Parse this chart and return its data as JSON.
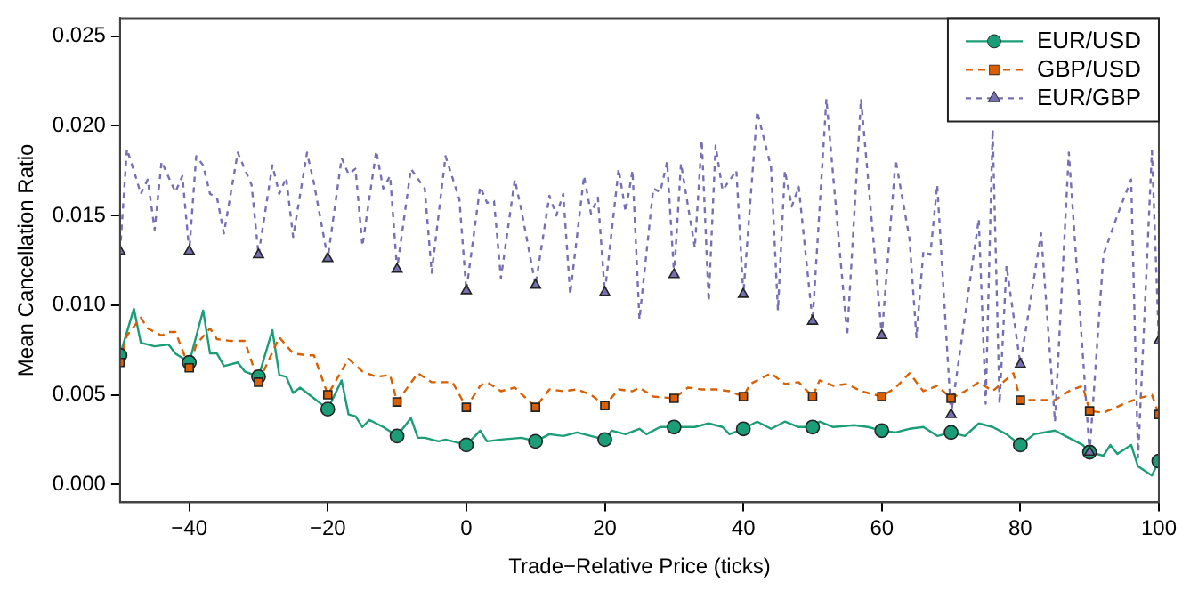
{
  "chart_data": {
    "type": "line",
    "xlabel": "Trade−Relative Price (ticks)",
    "ylabel": "Mean Cancellation Ratio",
    "xlim": [
      -50,
      100
    ],
    "ylim": [
      -0.001,
      0.026
    ],
    "xticks": [
      {
        "value": -40,
        "label": "−40"
      },
      {
        "value": -20,
        "label": "−20"
      },
      0,
      20,
      40,
      60,
      80,
      100
    ],
    "yticks": [
      {
        "value": 0,
        "label": "0.000"
      },
      {
        "value": 0.005,
        "label": "0.005"
      },
      {
        "value": 0.01,
        "label": "0.010"
      },
      {
        "value": 0.015,
        "label": "0.015"
      },
      {
        "value": 0.02,
        "label": "0.020"
      },
      {
        "value": 0.025,
        "label": "0.025"
      }
    ],
    "grid": false,
    "legend": "top right",
    "series": [
      {
        "name": "EUR/USD",
        "color": "#1b9e77",
        "line_style": "solid",
        "x": [
          -50,
          -48,
          -47,
          -45,
          -43,
          -42,
          -40,
          -38,
          -37,
          -36,
          -35,
          -33,
          -32,
          -30,
          -28,
          -27,
          -26,
          -25,
          -24,
          -22,
          -20,
          -18,
          -17,
          -16,
          -15,
          -14,
          -12,
          -10,
          -8,
          -7,
          -6,
          -4,
          -3,
          0,
          2,
          3,
          5,
          8,
          10,
          12,
          14,
          16,
          18,
          20,
          21,
          23,
          25,
          26,
          28,
          30,
          33,
          35,
          37,
          38,
          40,
          42,
          44,
          46,
          48,
          50,
          51,
          53,
          56,
          58,
          60,
          62,
          64,
          66,
          68,
          70,
          72,
          74,
          76,
          78,
          80,
          82,
          85,
          87,
          89,
          90,
          92,
          93,
          94,
          96,
          97,
          99,
          100
        ],
        "values": [
          0.0072,
          0.0098,
          0.0079,
          0.0077,
          0.0078,
          0.0073,
          0.0068,
          0.0097,
          0.0073,
          0.0073,
          0.0066,
          0.0068,
          0.0063,
          0.006,
          0.0086,
          0.0061,
          0.006,
          0.0051,
          0.0054,
          0.0048,
          0.0042,
          0.0058,
          0.0039,
          0.0038,
          0.0032,
          0.0036,
          0.0032,
          0.0027,
          0.0037,
          0.0026,
          0.0026,
          0.0024,
          0.0025,
          0.0022,
          0.003,
          0.0024,
          0.0025,
          0.0026,
          0.0024,
          0.0028,
          0.0027,
          0.0029,
          0.0027,
          0.0025,
          0.003,
          0.0028,
          0.0031,
          0.0028,
          0.0032,
          0.0032,
          0.0032,
          0.0034,
          0.0032,
          0.0028,
          0.0031,
          0.0035,
          0.0031,
          0.0035,
          0.0032,
          0.0032,
          0.0035,
          0.0032,
          0.0033,
          0.0032,
          0.003,
          0.0029,
          0.0031,
          0.0032,
          0.0027,
          0.0029,
          0.0027,
          0.0034,
          0.0032,
          0.0028,
          0.0022,
          0.0028,
          0.003,
          0.0026,
          0.0022,
          0.0018,
          0.0016,
          0.0022,
          0.0017,
          0.0022,
          0.001,
          0.0005,
          0.0013
        ]
      },
      {
        "name": "GBP/USD",
        "color": "#d95f02",
        "line_style": "dashed",
        "x": [
          -50,
          -49,
          -47,
          -46,
          -44,
          -43,
          -42,
          -40,
          -39,
          -37,
          -36,
          -34,
          -32,
          -30,
          -27,
          -25,
          -23,
          -22,
          -20,
          -17,
          -15,
          -13,
          -11,
          -10,
          -7,
          -5,
          -2,
          0,
          2,
          3,
          5,
          7,
          10,
          12,
          14,
          16,
          18,
          20,
          22,
          24,
          25,
          27,
          30,
          32,
          34,
          36,
          38,
          40,
          41,
          44,
          46,
          48,
          50,
          51,
          53,
          55,
          57,
          60,
          62,
          64,
          66,
          68,
          70,
          72,
          74,
          76,
          79,
          80,
          82,
          85,
          87,
          89,
          90,
          92,
          95,
          97,
          99,
          100
        ],
        "values": [
          0.0068,
          0.0083,
          0.0093,
          0.0087,
          0.0083,
          0.0085,
          0.0085,
          0.0065,
          0.0078,
          0.0087,
          0.0081,
          0.008,
          0.008,
          0.0057,
          0.0082,
          0.0073,
          0.0072,
          0.0072,
          0.005,
          0.007,
          0.0063,
          0.006,
          0.0061,
          0.0046,
          0.0062,
          0.0057,
          0.0057,
          0.0043,
          0.0055,
          0.0057,
          0.0052,
          0.0054,
          0.0043,
          0.0053,
          0.0052,
          0.0053,
          0.005,
          0.0044,
          0.0053,
          0.0052,
          0.0054,
          0.0049,
          0.0048,
          0.0054,
          0.0053,
          0.0053,
          0.0052,
          0.0049,
          0.0056,
          0.0062,
          0.0056,
          0.0057,
          0.0049,
          0.0058,
          0.0055,
          0.0056,
          0.0052,
          0.0049,
          0.0054,
          0.0062,
          0.0052,
          0.0055,
          0.0048,
          0.0052,
          0.0057,
          0.0052,
          0.0062,
          0.0047,
          0.0047,
          0.0047,
          0.0052,
          0.0055,
          0.0041,
          0.004,
          0.0045,
          0.0048,
          0.005,
          0.0039
        ]
      },
      {
        "name": "EUR/GBP",
        "color": "#7570b3",
        "line_style": "dotted",
        "x": [
          -50,
          -49,
          -48,
          -47,
          -46,
          -45,
          -44,
          -42,
          -41,
          -40,
          -39,
          -38,
          -37,
          -36,
          -35,
          -33,
          -31,
          -30,
          -28,
          -27,
          -26,
          -25,
          -23,
          -22,
          -20,
          -18,
          -17,
          -16,
          -15,
          -13,
          -12,
          -11,
          -10,
          -8,
          -6,
          -5,
          -3,
          -1,
          0,
          2,
          3,
          4,
          5,
          7,
          8,
          10,
          12,
          13,
          14,
          15,
          17,
          18,
          19,
          20,
          22,
          23,
          24,
          25,
          27,
          28,
          29,
          30,
          31,
          33,
          34,
          35,
          36,
          37,
          39,
          40,
          42,
          44,
          45,
          46,
          47,
          48,
          50,
          52,
          55,
          57,
          60,
          62,
          64,
          65,
          66,
          67,
          68,
          70,
          74,
          75,
          76,
          77,
          78,
          80,
          83,
          85,
          87,
          90,
          92,
          94,
          96,
          97,
          99,
          100
        ],
        "values": [
          0.013,
          0.0187,
          0.0175,
          0.0162,
          0.017,
          0.0142,
          0.018,
          0.0163,
          0.0172,
          0.013,
          0.0183,
          0.0178,
          0.0162,
          0.016,
          0.014,
          0.0185,
          0.0167,
          0.0128,
          0.0178,
          0.0162,
          0.0171,
          0.0138,
          0.0185,
          0.0168,
          0.0126,
          0.0182,
          0.0173,
          0.0176,
          0.0133,
          0.0186,
          0.0165,
          0.0172,
          0.012,
          0.0176,
          0.0165,
          0.0118,
          0.0183,
          0.0159,
          0.0108,
          0.0166,
          0.0157,
          0.0158,
          0.0115,
          0.017,
          0.0152,
          0.0111,
          0.0161,
          0.015,
          0.0162,
          0.0106,
          0.0172,
          0.0151,
          0.016,
          0.0107,
          0.0176,
          0.0152,
          0.0175,
          0.0092,
          0.0165,
          0.0163,
          0.018,
          0.0117,
          0.0179,
          0.0132,
          0.0192,
          0.0102,
          0.0189,
          0.0164,
          0.0175,
          0.0106,
          0.0208,
          0.0177,
          0.0097,
          0.0175,
          0.0155,
          0.0166,
          0.0091,
          0.0215,
          0.0083,
          0.0215,
          0.0083,
          0.0181,
          0.0137,
          0.0082,
          0.013,
          0.0128,
          0.0167,
          0.0039,
          0.0148,
          0.0045,
          0.0198,
          0.0045,
          0.0122,
          0.0067,
          0.014,
          0.0035,
          0.0185,
          0.0018,
          0.0128,
          0.015,
          0.017,
          0.0015,
          0.0186,
          0.008
        ]
      },
      {
        "type": "scatter",
        "color": "#1b9e77",
        "marker": "circle",
        "x": [
          -50,
          -40,
          -30,
          -20,
          -10,
          0,
          10,
          20,
          30,
          40,
          50,
          60,
          70,
          80,
          90,
          100
        ],
        "values": [
          0.0072,
          0.0068,
          0.006,
          0.0042,
          0.0027,
          0.0022,
          0.0024,
          0.0025,
          0.0032,
          0.0031,
          0.0032,
          0.003,
          0.0029,
          0.0022,
          0.0018,
          0.0013
        ]
      },
      {
        "type": "scatter",
        "color": "#d95f02",
        "marker": "square",
        "x": [
          -50,
          -40,
          -30,
          -20,
          -10,
          0,
          10,
          20,
          30,
          40,
          50,
          60,
          70,
          80,
          90,
          100
        ],
        "values": [
          0.0068,
          0.0065,
          0.0057,
          0.005,
          0.0046,
          0.0043,
          0.0043,
          0.0044,
          0.0048,
          0.0049,
          0.0049,
          0.0049,
          0.0048,
          0.0047,
          0.0041,
          0.0039
        ]
      },
      {
        "type": "scatter",
        "color": "#7570b3",
        "marker": "triangle",
        "x": [
          -50,
          -40,
          -30,
          -20,
          -10,
          0,
          10,
          20,
          30,
          40,
          50,
          60,
          70,
          80,
          90,
          100
        ],
        "values": [
          0.013,
          0.013,
          0.0128,
          0.0126,
          0.012,
          0.0108,
          0.0111,
          0.0107,
          0.0117,
          0.0106,
          0.0091,
          0.0083,
          0.0039,
          0.0067,
          0.0018,
          0.008
        ]
      }
    ]
  }
}
